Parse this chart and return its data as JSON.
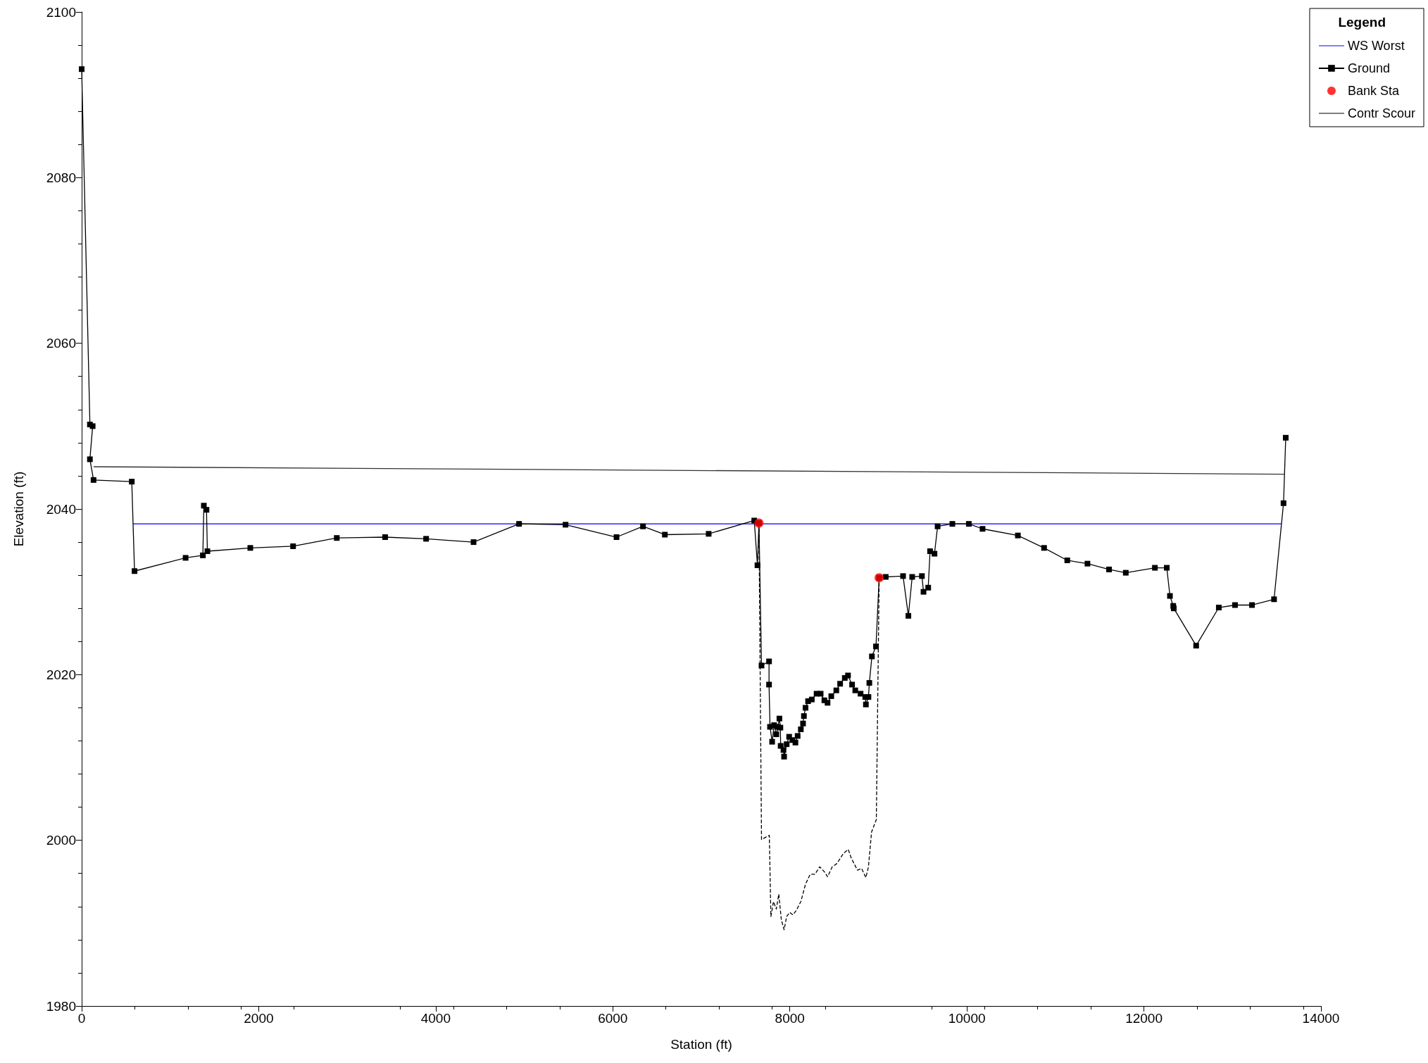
{
  "chart_data": {
    "type": "line",
    "xlabel": "Station (ft)",
    "ylabel": "Elevation (ft)",
    "legend_title": "Legend",
    "legend": "top right",
    "grid": false,
    "xlim": [
      0,
      14000
    ],
    "xticks": [
      0,
      2000,
      4000,
      6000,
      8000,
      10000,
      12000,
      14000
    ],
    "ylim": [
      1980,
      2100
    ],
    "yticks": [
      1980,
      2000,
      2020,
      2040,
      2060,
      2080,
      2100
    ],
    "series": [
      {
        "name": "WS Worst",
        "color": "#0000ff",
        "marker": "none",
        "line_style": "solid",
        "x": [
          580,
          13552
        ],
        "values": [
          2038.2,
          2038.2
        ]
      },
      {
        "name": "Ground",
        "color": "#000000",
        "marker": "square",
        "line_style": "solid",
        "x": [
          0,
          93,
          124,
          93,
          134,
          566,
          597,
          1174,
          1369,
          1380,
          1410,
          1420,
          1905,
          2388,
          2882,
          3428,
          3891,
          4427,
          4941,
          5466,
          6042,
          6341,
          6588,
          7083,
          7598,
          7634,
          7651,
          7680,
          7765,
          7765,
          7776,
          7800,
          7822,
          7847,
          7864,
          7882,
          7893,
          7896,
          7928,
          7935,
          7964,
          7992,
          8028,
          8063,
          8088,
          8124,
          8149,
          8159,
          8177,
          8206,
          8248,
          8302,
          8348,
          8390,
          8426,
          8468,
          8525,
          8568,
          8621,
          8657,
          8703,
          8739,
          8799,
          8852,
          8859,
          8888,
          8898,
          8927,
          8973,
          9009,
          9083,
          9279,
          9339,
          9382,
          9492,
          9510,
          9563,
          9584,
          9634,
          9669,
          9836,
          10022,
          10177,
          10576,
          10872,
          11134,
          11362,
          11606,
          11795,
          12124,
          12258,
          12294,
          12331,
          12337,
          12590,
          12846,
          13029,
          13221,
          13470,
          13577,
          13602
        ],
        "values": [
          2093.1,
          2050.2,
          2050.0,
          2046.0,
          2043.5,
          2043.3,
          2032.5,
          2034.1,
          2034.4,
          2040.4,
          2039.9,
          2034.9,
          2035.3,
          2035.5,
          2036.5,
          2036.6,
          2036.4,
          2036.0,
          2038.2,
          2038.1,
          2036.6,
          2037.9,
          2036.9,
          2037.0,
          2038.6,
          2033.2,
          2038.3,
          2021.1,
          2021.6,
          2018.8,
          2013.7,
          2011.9,
          2013.9,
          2012.8,
          2013.7,
          2014.7,
          2013.6,
          2011.4,
          2010.9,
          2010.1,
          2011.6,
          2012.5,
          2012.1,
          2011.8,
          2012.6,
          2013.4,
          2014.1,
          2015.0,
          2016.0,
          2016.8,
          2017.0,
          2017.7,
          2017.7,
          2016.9,
          2016.6,
          2017.4,
          2018.1,
          2018.9,
          2019.6,
          2019.9,
          2018.8,
          2018.1,
          2017.7,
          2017.3,
          2016.4,
          2017.3,
          2019.0,
          2022.2,
          2023.4,
          2031.7,
          2031.8,
          2031.9,
          2027.1,
          2031.8,
          2031.9,
          2030.0,
          2030.5,
          2034.9,
          2034.6,
          2037.9,
          2038.2,
          2038.2,
          2037.6,
          2036.8,
          2035.3,
          2033.8,
          2033.4,
          2032.7,
          2032.3,
          2032.9,
          2032.9,
          2029.5,
          2028.3,
          2028.0,
          2023.5,
          2028.1,
          2028.4,
          2028.4,
          2029.1,
          2040.7,
          2048.6
        ]
      },
      {
        "name": "Bank Sta",
        "type": "scatter",
        "color": "#ff0000",
        "marker": "circle",
        "x": [
          7651,
          9009
        ],
        "values": [
          2038.3,
          2031.7
        ]
      },
      {
        "name": "Contr Scour",
        "color": "#000000",
        "marker": "none",
        "line_style": "dashed",
        "x": [
          7651,
          7680,
          7768,
          7786,
          7815,
          7847,
          7875,
          7904,
          7935,
          7964,
          7999,
          8035,
          8071,
          8124,
          8177,
          8230,
          8284,
          8337,
          8390,
          8426,
          8479,
          8532,
          8604,
          8660,
          8692,
          8763,
          8810,
          8859,
          8888,
          8923,
          8977,
          9009
        ],
        "values": [
          2038.3,
          2000.1,
          2000.6,
          1990.8,
          1992.6,
          1991.7,
          1993.5,
          1990.4,
          1989.2,
          1990.8,
          1991.3,
          1991.0,
          1991.5,
          1992.6,
          1994.7,
          1995.9,
          1995.9,
          1996.8,
          1996.2,
          1995.6,
          1996.8,
          1997.2,
          1998.4,
          1998.9,
          1997.9,
          1996.4,
          1996.6,
          1995.5,
          1996.8,
          2001.0,
          2002.5,
          2031.7
        ]
      },
      {
        "color": "#333333",
        "marker": "none",
        "line_style": "solid",
        "x": [
          135,
          13586
        ],
        "values": [
          2045.1,
          2044.2
        ]
      }
    ]
  }
}
